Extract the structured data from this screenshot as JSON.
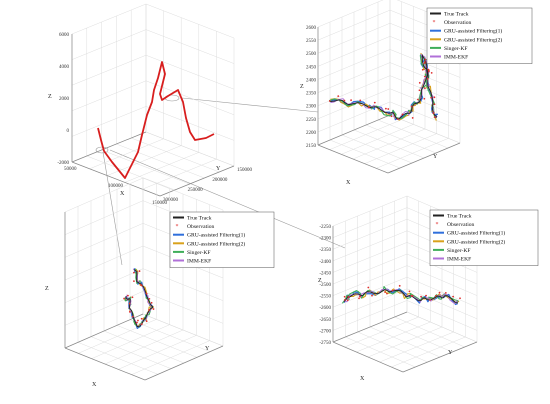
{
  "colors": {
    "true_track": "#222222",
    "observation": "#e03030",
    "gru1": "#2f6fdc",
    "gru2": "#d9a11b",
    "singer": "#3fae5a",
    "imm": "#b070d8",
    "overview_track": "#d81e1e",
    "axis": "#888888",
    "grid": "#d9d9d9"
  },
  "legend": [
    {
      "label": "True Track",
      "kind": "line",
      "color": "#222222"
    },
    {
      "label": "Observation",
      "kind": "marker",
      "color": "#e03030"
    },
    {
      "label": "GRU-assisted Filtering(1)",
      "kind": "line",
      "color": "#2f6fdc"
    },
    {
      "label": "GRU-assisted Filtering(2)",
      "kind": "line",
      "color": "#d9a11b"
    },
    {
      "label": "Singer-KF",
      "kind": "line",
      "color": "#3fae5a"
    },
    {
      "label": "IMM-EKF",
      "kind": "line",
      "color": "#b070d8"
    }
  ],
  "chart_data": [
    {
      "type": "line",
      "panel": "overview",
      "axis_labels": {
        "x": "X",
        "y": "Y",
        "z": "Z"
      },
      "z_ticks": [
        "6000",
        "4000",
        "2000",
        "0",
        "-2000"
      ],
      "y_ticks": [
        "300000",
        "250000",
        "200000",
        "150000"
      ],
      "x_ticks": [
        "50000",
        "100000",
        "150000"
      ],
      "grid": true,
      "series": [
        {
          "values_xyz": [
            [
              40,
              120,
              -1500
            ],
            [
              60,
              140,
              -1200
            ],
            [
              80,
              160,
              800
            ],
            [
              100,
              180,
              2500
            ],
            [
              115,
              200,
              5000
            ],
            [
              125,
              215,
              3000
            ],
            [
              140,
              230,
              1500
            ],
            [
              160,
              250,
              -800
            ],
            [
              175,
              265,
              -1700
            ]
          ]
        }
      ]
    },
    {
      "type": "line",
      "panel": "zoom-top-right",
      "axis_labels": {
        "x": "X",
        "y": "Y",
        "z": "Z"
      },
      "z_ticks": [
        "2600",
        "2550",
        "2500",
        "2450",
        "2400",
        "2350",
        "2300",
        "2250",
        "2200",
        "2150"
      ],
      "legend_position": "top-right",
      "grid": true
    },
    {
      "type": "line",
      "panel": "zoom-bottom-left",
      "axis_labels": {
        "x": "X",
        "y": "Y",
        "z": "Z"
      },
      "legend_position": "top-right",
      "grid": true
    },
    {
      "type": "line",
      "panel": "zoom-bottom-right",
      "axis_labels": {
        "x": "X",
        "y": "Y",
        "z": "Z"
      },
      "z_ticks": [
        "-2250",
        "-2300",
        "-2350",
        "-2400",
        "-2450",
        "-2500",
        "-2550",
        "-2600",
        "-2650",
        "-2700",
        "-2750"
      ],
      "legend_position": "top-right",
      "grid": true
    }
  ]
}
